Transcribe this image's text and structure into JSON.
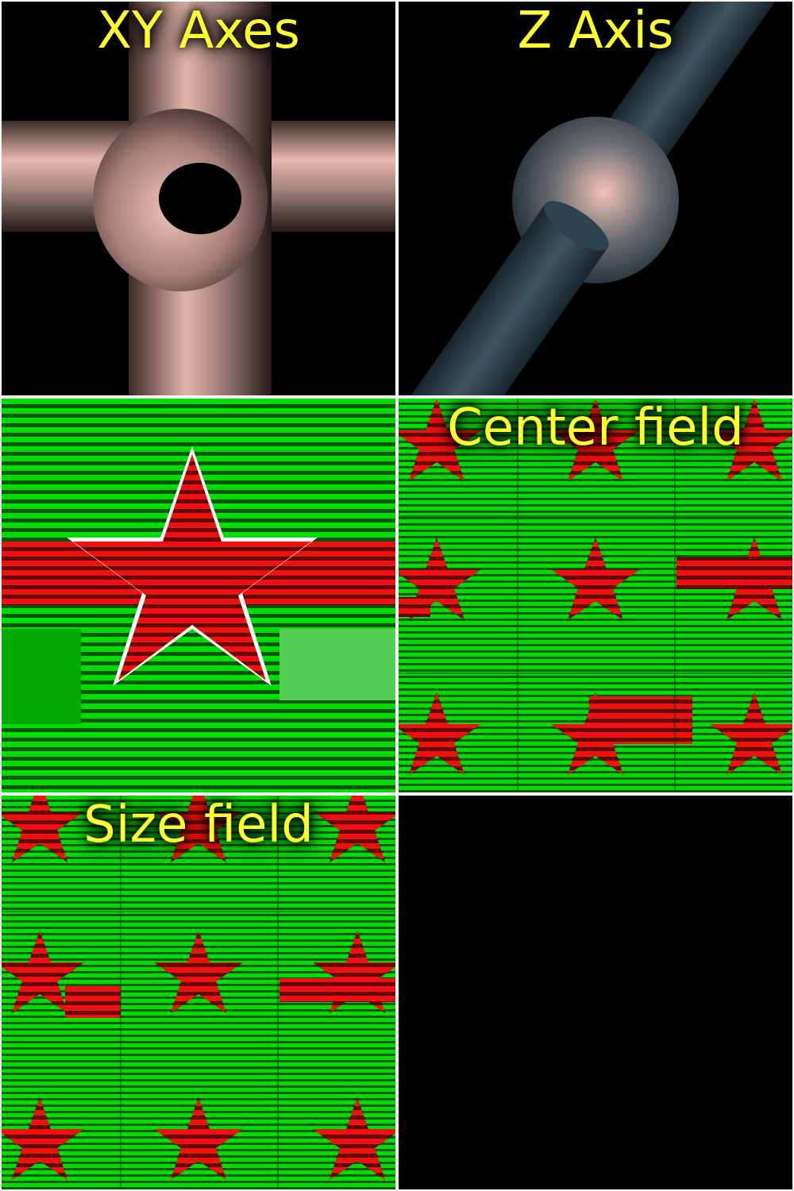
{
  "panels": [
    {
      "id": "xy-axes",
      "title": "XY Axes",
      "background": "#000000",
      "tube_color": "#e8b3aa"
    },
    {
      "id": "z-axis",
      "title": "Z Axis",
      "background": "#000000",
      "tube_color": "#2e4350"
    },
    {
      "id": "star-pattern",
      "title": "",
      "background": "#00cc00",
      "star_color": "#dd0000"
    },
    {
      "id": "center-field",
      "title": "Center field",
      "background": "#00cc00",
      "star_color": "#dd0000"
    },
    {
      "id": "size-field",
      "title": "Size field",
      "background": "#00cc00",
      "star_color": "#dd0000"
    },
    {
      "id": "empty",
      "title": "",
      "background": "#000000"
    }
  ],
  "label_color": "#ffff33"
}
